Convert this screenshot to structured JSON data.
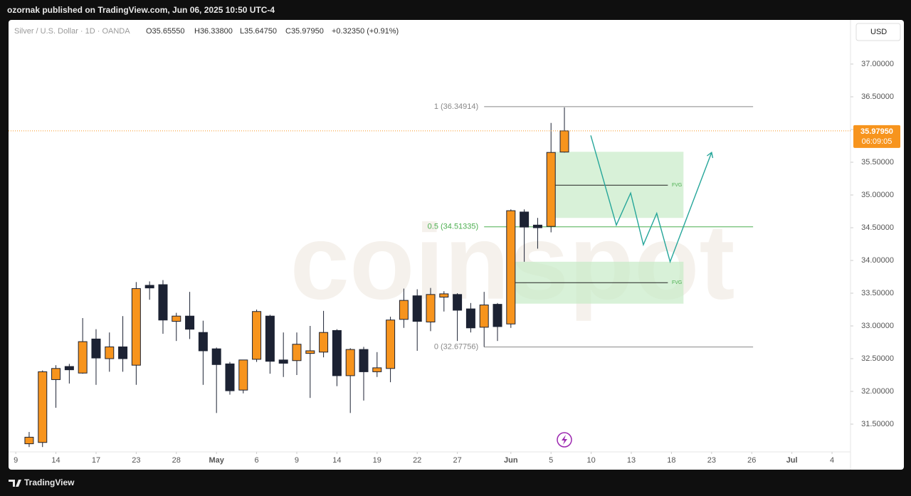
{
  "header": "ozornak published on TradingView.com, Jun 06, 2025 10:50 UTC-4",
  "footer": "TradingView",
  "currency_button": "USD",
  "watermark": "coinspot",
  "legend": {
    "symbol": "Silver / U.S. Dollar · 1D · OANDA",
    "open": "O35.65550",
    "high": "H36.33800",
    "low": "L35.64750",
    "close": "C35.97950",
    "change": "+0.32350 (+0.91%)"
  },
  "price_tag": {
    "value": 35.9795,
    "label": "35.97950",
    "countdown": "06:09:05"
  },
  "chart_data": {
    "type": "candlestick",
    "up_color": "#f7941d",
    "down_color": "#1c2233",
    "wick_color": "#1c2233",
    "grid": false,
    "xlim": [
      -1.54,
      61.38
    ],
    "ylim": [
      31.076,
      37.674
    ],
    "xticks": [
      {
        "value": -1,
        "label": "9"
      },
      {
        "value": 2,
        "label": "14"
      },
      {
        "value": 5,
        "label": "17"
      },
      {
        "value": 8,
        "label": "23"
      },
      {
        "value": 11,
        "label": "28"
      },
      {
        "value": 14,
        "label": "May"
      },
      {
        "value": 17,
        "label": "6"
      },
      {
        "value": 20,
        "label": "9"
      },
      {
        "value": 23,
        "label": "14"
      },
      {
        "value": 26,
        "label": "19"
      },
      {
        "value": 29,
        "label": "22"
      },
      {
        "value": 32,
        "label": "27"
      },
      {
        "value": 36,
        "label": "Jun"
      },
      {
        "value": 39,
        "label": "5"
      },
      {
        "value": 42,
        "label": "10"
      },
      {
        "value": 45,
        "label": "13"
      },
      {
        "value": 48,
        "label": "18"
      },
      {
        "value": 51,
        "label": "23"
      },
      {
        "value": 54,
        "label": "26"
      },
      {
        "value": 57,
        "label": "Jul"
      },
      {
        "value": 60,
        "label": "4"
      }
    ],
    "yticks": [
      {
        "value": 37,
        "label": "37.00000"
      },
      {
        "value": 36.5,
        "label": "36.50000"
      },
      {
        "value": 36,
        "label": "36.00000"
      },
      {
        "value": 35.5,
        "label": "35.50000"
      },
      {
        "value": 35,
        "label": "35.00000"
      },
      {
        "value": 34.5,
        "label": "34.50000"
      },
      {
        "value": 34,
        "label": "34.00000"
      },
      {
        "value": 33.5,
        "label": "33.50000"
      },
      {
        "value": 33,
        "label": "33.00000"
      },
      {
        "value": 32.5,
        "label": "32.50000"
      },
      {
        "value": 32,
        "label": "32.00000"
      },
      {
        "value": 31.5,
        "label": "31.50000"
      }
    ],
    "ohlc": {
      "open": [
        31.2,
        31.22,
        32.18,
        32.38,
        32.28,
        32.8,
        32.5,
        32.68,
        32.4,
        33.62,
        33.63,
        33.07,
        33.15,
        32.9,
        32.65,
        32.42,
        32.02,
        32.49,
        33.15,
        32.48,
        32.47,
        32.58,
        32.6,
        32.93,
        32.24,
        32.64,
        32.3,
        32.35,
        33.1,
        33.46,
        33.06,
        33.44,
        33.48,
        33.26,
        32.98,
        33.33,
        33.03,
        34.74,
        34.54,
        34.52,
        35.6555
      ],
      "high": [
        31.38,
        32.32,
        32.4,
        32.42,
        33.12,
        32.95,
        32.9,
        33.15,
        33.67,
        33.68,
        33.7,
        33.2,
        33.52,
        33.08,
        32.67,
        32.45,
        32.48,
        33.25,
        33.17,
        32.9,
        32.9,
        33.0,
        33.23,
        32.95,
        32.66,
        32.68,
        32.6,
        33.14,
        33.57,
        33.56,
        33.58,
        33.53,
        33.5,
        33.35,
        33.52,
        33.35,
        34.78,
        34.78,
        34.65,
        36.1,
        36.338
      ],
      "low": [
        31.15,
        31.15,
        31.75,
        32.12,
        32.27,
        32.1,
        32.3,
        32.3,
        32.1,
        33.4,
        32.88,
        32.77,
        32.8,
        32.1,
        31.67,
        31.95,
        31.97,
        32.45,
        32.27,
        32.22,
        32.25,
        31.9,
        32.52,
        32.08,
        31.67,
        31.86,
        32.22,
        32.14,
        32.97,
        32.62,
        32.92,
        33.22,
        32.77,
        32.9,
        32.68,
        32.77,
        32.97,
        33.98,
        34.18,
        34.43,
        35.6475
      ],
      "close": [
        31.3,
        32.3,
        32.35,
        32.33,
        32.76,
        32.51,
        32.68,
        32.5,
        33.57,
        33.58,
        33.09,
        33.15,
        32.95,
        32.62,
        32.41,
        32.01,
        32.48,
        33.22,
        32.46,
        32.43,
        32.72,
        32.62,
        32.9,
        32.24,
        32.64,
        32.3,
        32.36,
        33.09,
        33.39,
        33.07,
        33.48,
        33.49,
        33.24,
        32.97,
        33.32,
        32.99,
        34.76,
        34.51,
        34.5,
        35.65,
        35.9795
      ]
    },
    "fib_levels": [
      {
        "label": "1 (36.34914)",
        "value": 36.34914,
        "color": "#888888"
      },
      {
        "label": "0.5 (34.51335)",
        "value": 34.51335,
        "color": "#4caf50"
      },
      {
        "label": "0 (32.67756)",
        "value": 32.67756,
        "color": "#888888"
      }
    ],
    "fib_x": [
      34.0,
      54.1
    ],
    "fvg_zones": [
      {
        "label": "FVG",
        "x": [
          39.3,
          48.9
        ],
        "top": 35.66,
        "bottom": 34.65,
        "mid": 35.15
      },
      {
        "label": "FVG",
        "x": [
          36.3,
          48.9
        ],
        "top": 33.98,
        "bottom": 33.34,
        "mid": 33.66
      }
    ],
    "projection": {
      "color": "#26a69a",
      "x": [
        41.97,
        43.88,
        44.95,
        45.9,
        46.9,
        47.9,
        51.0
      ],
      "y": [
        35.91,
        34.54,
        35.03,
        34.24,
        34.72,
        33.98,
        35.65
      ]
    }
  }
}
